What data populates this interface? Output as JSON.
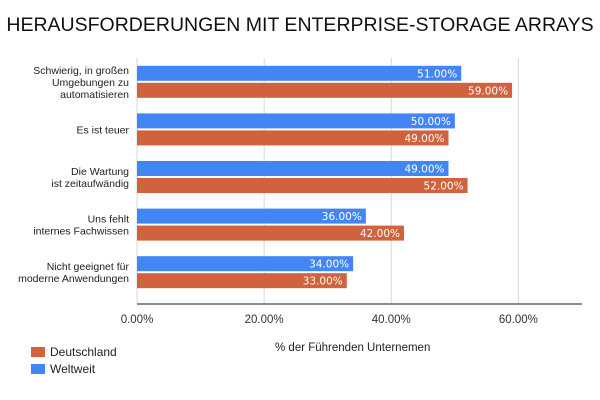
{
  "chart_data": {
    "type": "bar",
    "orientation": "horizontal",
    "title": "HERAUSFORDERUNGEN MIT ENTERPRISE-STORAGE ARRAYS",
    "xlabel": "% der Führenden Unternemen",
    "ylabel": "",
    "xlim": [
      0,
      70
    ],
    "xticks": [
      0,
      20,
      40,
      60
    ],
    "xtick_labels": [
      "0.00%",
      "20.00%",
      "40.00%",
      "60.00%"
    ],
    "grid": true,
    "legend_position": "bottom-left",
    "categories": [
      [
        "Schwierig, in großen",
        "Umgebungen zu",
        "automatisieren"
      ],
      [
        "Es ist teuer"
      ],
      [
        "Die Wartung",
        "ist zeitaufwändig"
      ],
      [
        "Uns fehlt",
        "internes Fachwissen"
      ],
      [
        "Nicht geeignet für",
        "moderne Anwendungen"
      ]
    ],
    "series": [
      {
        "name": "Weltweit",
        "color": "#4285f4",
        "values": [
          51,
          50,
          49,
          36,
          34
        ],
        "labels": [
          "51.00%",
          "50.00%",
          "49.00%",
          "36.00%",
          "34.00%"
        ]
      },
      {
        "name": "Deutschland",
        "color": "#d0633d",
        "values": [
          59,
          49,
          52,
          42,
          33
        ],
        "labels": [
          "59.00%",
          "49.00%",
          "52.00%",
          "42.00%",
          "33.00%"
        ]
      }
    ],
    "legend": [
      {
        "name": "Deutschland",
        "color": "#d0633d"
      },
      {
        "name": "Weltweit",
        "color": "#4285f4"
      }
    ]
  }
}
